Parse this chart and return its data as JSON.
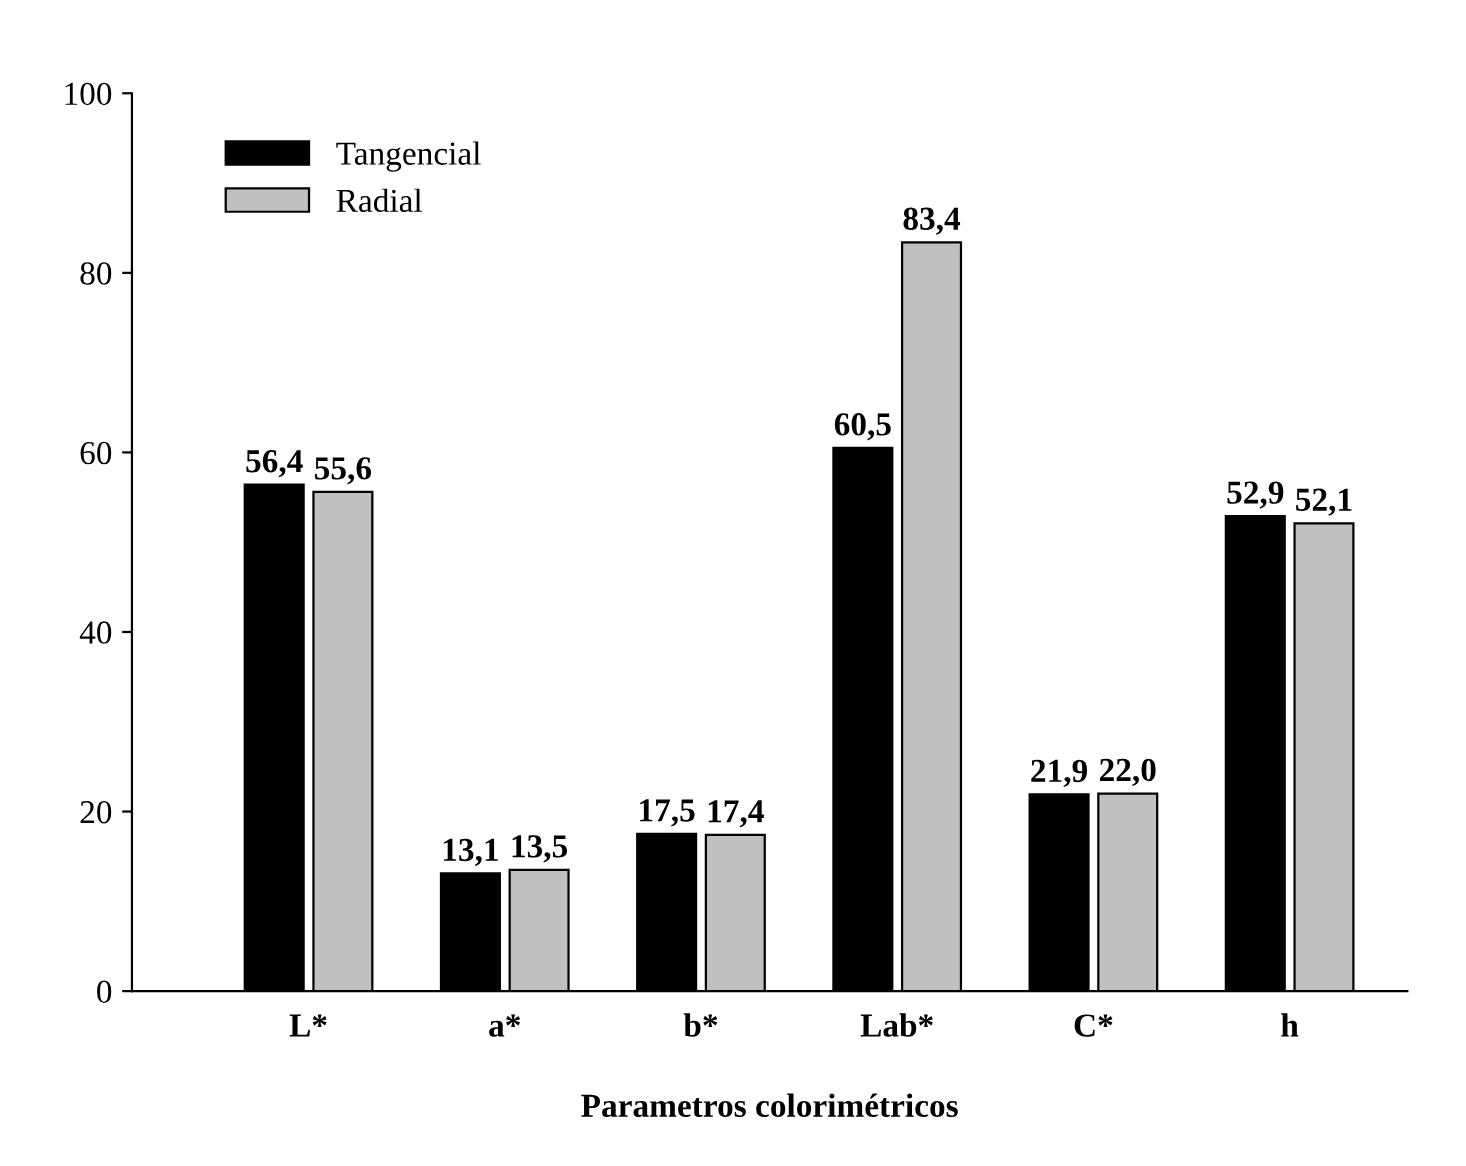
{
  "chart_data": {
    "type": "bar",
    "xlabel": "Parametros colorimétricos",
    "categories": [
      "L*",
      "a*",
      "b*",
      "Lab*",
      "C*",
      "h"
    ],
    "series": [
      {
        "name": "Tangencial",
        "color": "#000000",
        "values": [
          56.4,
          13.1,
          17.5,
          60.5,
          21.9,
          52.9
        ],
        "value_labels": [
          "56,4",
          "13,1",
          "17,5",
          "60,5",
          "21,9",
          "52,9"
        ]
      },
      {
        "name": "Radial",
        "color": "#c0c0c0",
        "values": [
          55.6,
          13.5,
          17.4,
          83.4,
          22.0,
          52.1
        ],
        "value_labels": [
          "55,6",
          "13,5",
          "17,4",
          "83,4",
          "22,0",
          "52,1"
        ]
      }
    ],
    "ylim": [
      0,
      100
    ],
    "yticks": [
      0,
      20,
      40,
      60,
      80,
      100
    ],
    "grid": false,
    "legend": "top left"
  }
}
